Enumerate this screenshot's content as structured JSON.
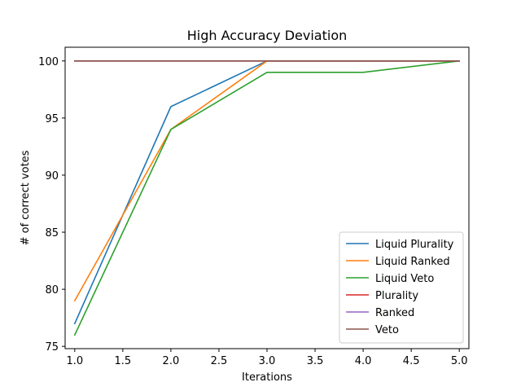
{
  "chart_data": {
    "type": "line",
    "title": "High Accuracy Deviation",
    "xlabel": "Iterations",
    "ylabel": "# of correct votes",
    "x": [
      1.0,
      2.0,
      3.0,
      4.0,
      5.0
    ],
    "xlim": [
      0.9,
      5.1
    ],
    "ylim": [
      74.8,
      101.2
    ],
    "xticks": [
      1.0,
      1.5,
      2.0,
      2.5,
      3.0,
      3.5,
      4.0,
      4.5,
      5.0
    ],
    "xtick_labels": [
      "1.0",
      "1.5",
      "2.0",
      "2.5",
      "3.0",
      "3.5",
      "4.0",
      "4.5",
      "5.0"
    ],
    "yticks": [
      75,
      80,
      85,
      90,
      95,
      100
    ],
    "ytick_labels": [
      "75",
      "80",
      "85",
      "90",
      "95",
      "100"
    ],
    "grid": false,
    "legend_position": "lower-right",
    "series": [
      {
        "name": "Liquid Plurality",
        "color": "#1f77b4",
        "values": [
          77,
          96,
          100,
          100,
          100
        ]
      },
      {
        "name": "Liquid Ranked",
        "color": "#ff7f0e",
        "values": [
          79,
          94,
          100,
          100,
          100
        ]
      },
      {
        "name": "Liquid Veto",
        "color": "#2ca02c",
        "values": [
          76,
          94,
          99,
          99,
          100
        ]
      },
      {
        "name": "Plurality",
        "color": "#d62728",
        "values": [
          100,
          100,
          100,
          100,
          100
        ]
      },
      {
        "name": "Ranked",
        "color": "#9467bd",
        "values": [
          100,
          100,
          100,
          100,
          100
        ]
      },
      {
        "name": "Veto",
        "color": "#8c564b",
        "values": [
          100,
          100,
          100,
          100,
          100
        ]
      }
    ]
  }
}
